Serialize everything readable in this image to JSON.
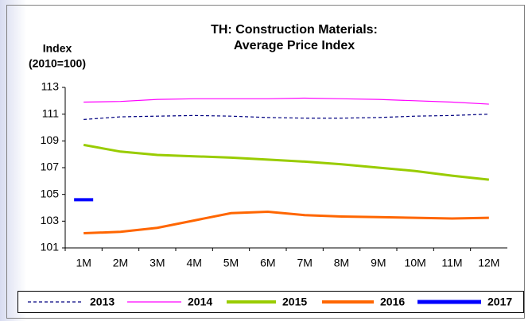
{
  "chart_data": {
    "type": "line",
    "title_lines": [
      "TH: Construction Materials:",
      "Average Price Index"
    ],
    "y_label_lines": [
      "Index",
      "(2010=100)"
    ],
    "categories": [
      "1M",
      "2M",
      "3M",
      "4M",
      "5M",
      "6M",
      "7M",
      "8M",
      "9M",
      "10M",
      "11M",
      "12M"
    ],
    "ylim": [
      101,
      113
    ],
    "yticks": [
      101,
      103,
      105,
      107,
      109,
      111,
      113
    ],
    "grid": false,
    "legend": "bottom",
    "series": [
      {
        "name": "2013",
        "color": "#000080",
        "line_style": "dashed",
        "values": [
          110.6,
          110.8,
          110.85,
          110.9,
          110.85,
          110.75,
          110.7,
          110.7,
          110.75,
          110.85,
          110.9,
          111.0
        ]
      },
      {
        "name": "2014",
        "color": "#ff00ff",
        "line_style": "solid",
        "values": [
          111.9,
          111.95,
          112.1,
          112.15,
          112.15,
          112.15,
          112.2,
          112.15,
          112.1,
          112.0,
          111.9,
          111.75
        ]
      },
      {
        "name": "2015",
        "color": "#99cc00",
        "line_style": "solid",
        "values": [
          108.7,
          108.2,
          107.95,
          107.85,
          107.75,
          107.6,
          107.45,
          107.25,
          107.0,
          106.75,
          106.4,
          106.1
        ]
      },
      {
        "name": "2016",
        "color": "#ff6600",
        "line_style": "solid",
        "values": [
          102.1,
          102.2,
          102.5,
          103.05,
          103.6,
          103.7,
          103.45,
          103.35,
          103.3,
          103.25,
          103.2,
          103.25
        ]
      },
      {
        "name": "2017",
        "color": "#0000ff",
        "line_style": "solid",
        "values": [
          104.6,
          null,
          null,
          null,
          null,
          null,
          null,
          null,
          null,
          null,
          null,
          null
        ]
      }
    ]
  }
}
